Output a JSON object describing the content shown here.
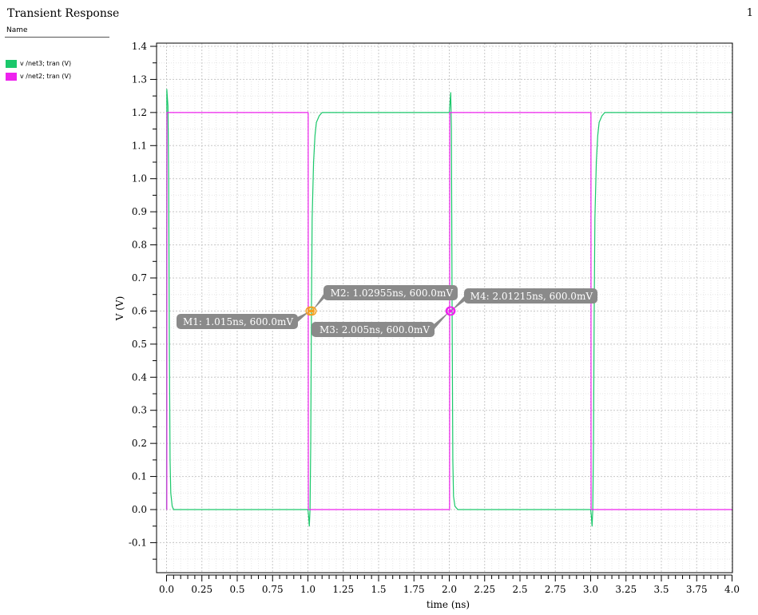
{
  "header": {
    "title": "Transient Response",
    "page_number": "1"
  },
  "legend": {
    "header": "Name",
    "items": [
      {
        "label": "v /net3; tran (V)",
        "color": "#1bc86b"
      },
      {
        "label": "v /net2; tran (V)",
        "color": "#ee22ee"
      }
    ]
  },
  "chart_data": {
    "type": "line",
    "xlabel": "time (ns)",
    "ylabel": "V (V)",
    "xlim": [
      0.0,
      4.0
    ],
    "ylim": [
      -0.2,
      1.42
    ],
    "grid": true,
    "xticks": [
      "0.0",
      "0.25",
      "0.5",
      "0.75",
      "1.0",
      "1.25",
      "1.5",
      "1.75",
      "2.0",
      "2.25",
      "2.5",
      "2.75",
      "3.0",
      "3.25",
      "3.5",
      "3.75",
      "4.0"
    ],
    "yticks": [
      "1.4",
      "1.3",
      "1.2",
      "1.1",
      "1.0",
      "0.9",
      "0.8",
      "0.7",
      "0.6",
      "0.5",
      "0.4",
      "0.3",
      "0.2",
      "0.1",
      "0.0",
      "-0.1"
    ],
    "series": [
      {
        "name": "v /net3; tran (V)",
        "color": "#1bc86b",
        "x": [
          0.0,
          0.002,
          0.01,
          0.015,
          0.02,
          0.025,
          0.03,
          0.04,
          0.05,
          0.08,
          1.0,
          1.005,
          1.01,
          1.015,
          1.02,
          1.025,
          1.03,
          1.04,
          1.05,
          1.06,
          1.08,
          1.1,
          1.15,
          1.2,
          2.0,
          2.005,
          2.01,
          2.015,
          2.02,
          2.025,
          2.03,
          2.04,
          2.06,
          2.08,
          3.0,
          3.005,
          3.01,
          3.015,
          3.02,
          3.025,
          3.03,
          3.04,
          3.05,
          3.06,
          3.08,
          3.1,
          3.15,
          3.2,
          4.0
        ],
        "y": [
          0.0,
          1.27,
          1.22,
          1.0,
          0.5,
          0.15,
          0.05,
          0.01,
          0.0,
          0.0,
          0.0,
          -0.02,
          -0.05,
          0.0,
          0.2,
          0.6,
          0.88,
          1.05,
          1.13,
          1.17,
          1.19,
          1.2,
          1.2,
          1.2,
          1.2,
          1.23,
          1.26,
          1.15,
          0.6,
          0.15,
          0.04,
          0.01,
          0.0,
          0.0,
          0.0,
          -0.02,
          -0.05,
          0.0,
          0.2,
          0.6,
          0.88,
          1.05,
          1.13,
          1.17,
          1.19,
          1.2,
          1.2,
          1.2,
          1.2
        ]
      },
      {
        "name": "v /net2; tran (V)",
        "color": "#ee22ee",
        "x": [
          0.0,
          0.002,
          0.003,
          1.0,
          1.002,
          1.003,
          2.0,
          2.002,
          2.003,
          3.0,
          3.002,
          3.003,
          4.0
        ],
        "y": [
          0.0,
          0.0,
          1.2,
          1.2,
          1.2,
          0.0,
          0.0,
          0.0,
          1.2,
          1.2,
          1.2,
          0.0,
          0.0
        ]
      }
    ],
    "markers": [
      {
        "label": "M1: 1.015ns, 600.0mV",
        "x": 1.015,
        "y": 0.6,
        "color": "#f4a020"
      },
      {
        "label": "M2: 1.02955ns, 600.0mV",
        "x": 1.02955,
        "y": 0.6,
        "color": "#f4a020"
      },
      {
        "label": "M3: 2.005ns, 600.0mV",
        "x": 2.005,
        "y": 0.6,
        "color": "#ee22ee"
      },
      {
        "label": "M4: 2.01215ns, 600.0mV",
        "x": 2.01215,
        "y": 0.6,
        "color": "#ee22ee"
      }
    ]
  }
}
